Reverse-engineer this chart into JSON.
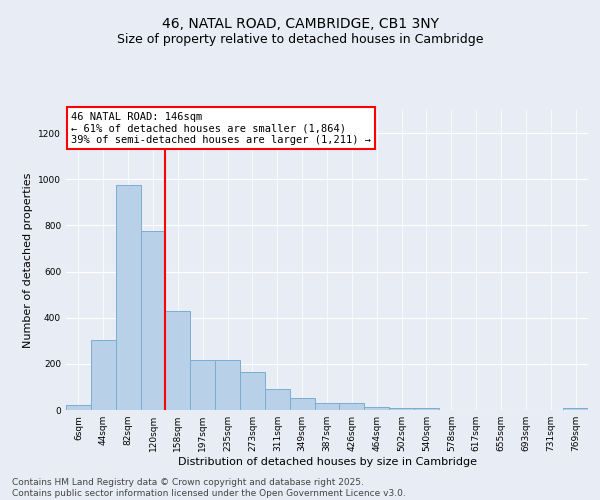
{
  "title": "46, NATAL ROAD, CAMBRIDGE, CB1 3NY",
  "subtitle": "Size of property relative to detached houses in Cambridge",
  "xlabel": "Distribution of detached houses by size in Cambridge",
  "ylabel": "Number of detached properties",
  "categories": [
    "6sqm",
    "44sqm",
    "82sqm",
    "120sqm",
    "158sqm",
    "197sqm",
    "235sqm",
    "273sqm",
    "311sqm",
    "349sqm",
    "387sqm",
    "426sqm",
    "464sqm",
    "502sqm",
    "540sqm",
    "578sqm",
    "617sqm",
    "655sqm",
    "693sqm",
    "731sqm",
    "769sqm"
  ],
  "values": [
    22,
    305,
    975,
    775,
    430,
    215,
    215,
    165,
    90,
    50,
    32,
    32,
    15,
    8,
    8,
    1,
    0,
    0,
    0,
    0,
    8
  ],
  "bar_color": "#b8d0e8",
  "bar_edge_color": "#7aadd0",
  "property_label": "46 NATAL ROAD: 146sqm",
  "annotation_line1": "← 61% of detached houses are smaller (1,864)",
  "annotation_line2": "39% of semi-detached houses are larger (1,211) →",
  "vline_x": 3.5,
  "ylim": [
    0,
    1300
  ],
  "yticks": [
    0,
    200,
    400,
    600,
    800,
    1000,
    1200
  ],
  "background_color": "#e8ecf5",
  "plot_background": "#e8ecf5",
  "footer_line1": "Contains HM Land Registry data © Crown copyright and database right 2025.",
  "footer_line2": "Contains public sector information licensed under the Open Government Licence v3.0.",
  "title_fontsize": 10,
  "subtitle_fontsize": 9,
  "tick_fontsize": 6.5,
  "ylabel_fontsize": 8,
  "xlabel_fontsize": 8,
  "annotation_fontsize": 7.5,
  "footer_fontsize": 6.5
}
